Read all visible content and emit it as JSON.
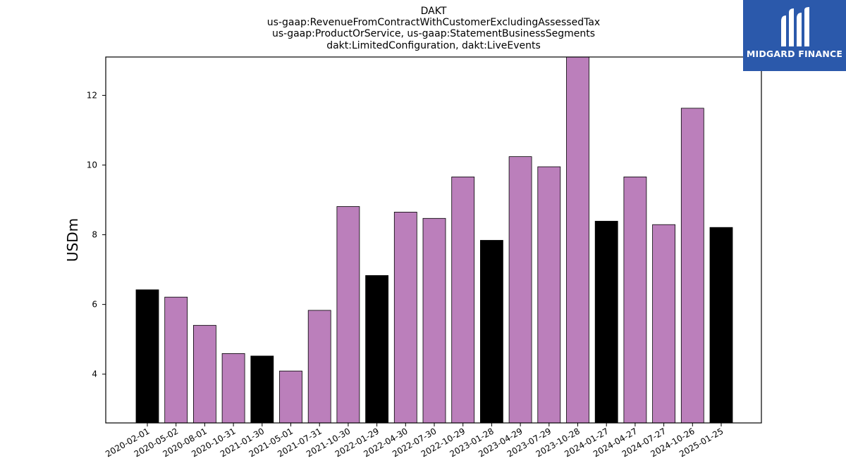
{
  "chart_data": {
    "type": "bar",
    "title": "DAKT",
    "subtitle_lines": [
      "us-gaap:RevenueFromContractWithCustomerExcludingAssessedTax",
      "us-gaap:ProductOrService, us-gaap:StatementBusinessSegments",
      "dakt:LimitedConfiguration, dakt:LiveEvents"
    ],
    "xlabel": "",
    "ylabel": "USDm",
    "ylim": [
      2.6,
      13.1
    ],
    "yticks": [
      4,
      6,
      8,
      10,
      12
    ],
    "grid": false,
    "categories": [
      "2020-02-01",
      "2020-05-02",
      "2020-08-01",
      "2020-10-31",
      "2021-01-30",
      "2021-05-01",
      "2021-07-31",
      "2021-10-30",
      "2022-01-29",
      "2022-04-30",
      "2022-07-30",
      "2022-10-29",
      "2023-01-28",
      "2023-04-29",
      "2023-07-29",
      "2023-10-28",
      "2024-01-27",
      "2024-04-27",
      "2024-07-27",
      "2024-10-26",
      "2025-01-25"
    ],
    "values": [
      6.42,
      6.21,
      5.4,
      4.59,
      4.52,
      4.09,
      5.83,
      8.81,
      6.83,
      8.65,
      8.47,
      9.66,
      7.84,
      10.24,
      9.95,
      13.2,
      8.39,
      9.66,
      8.29,
      11.63,
      8.21
    ],
    "colors": [
      "#000000",
      "#bb7fbb",
      "#bb7fbb",
      "#bb7fbb",
      "#000000",
      "#bb7fbb",
      "#bb7fbb",
      "#bb7fbb",
      "#000000",
      "#bb7fbb",
      "#bb7fbb",
      "#bb7fbb",
      "#000000",
      "#bb7fbb",
      "#bb7fbb",
      "#bb7fbb",
      "#000000",
      "#bb7fbb",
      "#bb7fbb",
      "#bb7fbb",
      "#000000"
    ]
  },
  "logo": {
    "text": "MIDGARD FINANCE",
    "background": "#2b59ab"
  }
}
